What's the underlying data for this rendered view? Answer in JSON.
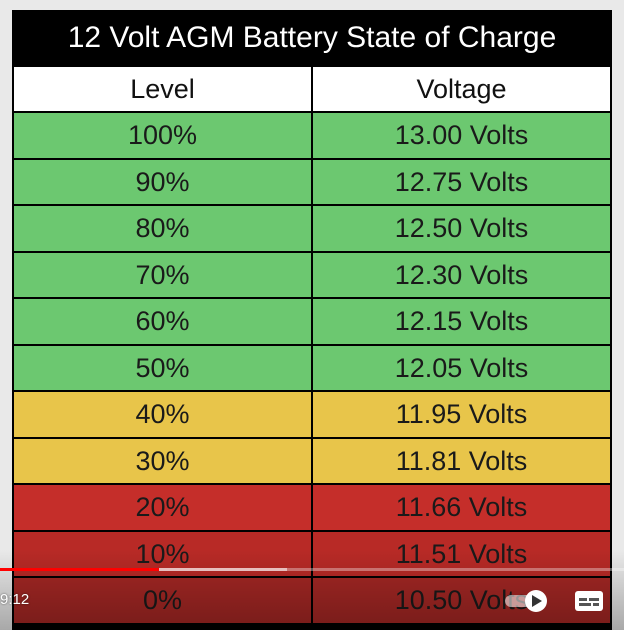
{
  "table": {
    "title": "12 Volt AGM Battery State of Charge",
    "headers": {
      "level": "Level",
      "voltage": "Voltage"
    },
    "rows": [
      {
        "level": "100%",
        "voltage": "13.00 Volts",
        "color": "#6cc870"
      },
      {
        "level": "90%",
        "voltage": "12.75 Volts",
        "color": "#6cc870"
      },
      {
        "level": "80%",
        "voltage": "12.50 Volts",
        "color": "#6cc870"
      },
      {
        "level": "70%",
        "voltage": "12.30 Volts",
        "color": "#6cc870"
      },
      {
        "level": "60%",
        "voltage": "12.15 Volts",
        "color": "#6cc870"
      },
      {
        "level": "50%",
        "voltage": "12.05 Volts",
        "color": "#6cc870"
      },
      {
        "level": "40%",
        "voltage": "11.95 Volts",
        "color": "#e8c54a"
      },
      {
        "level": "30%",
        "voltage": "11.81 Volts",
        "color": "#e8c54a"
      },
      {
        "level": "20%",
        "voltage": "11.66 Volts",
        "color": "#c52e2a"
      },
      {
        "level": "10%",
        "voltage": "11.51 Volts",
        "color": "#b82a26"
      },
      {
        "level": "0%",
        "voltage": "10.50 Volts",
        "color": "#a52724"
      }
    ]
  },
  "player": {
    "time_display": "9:12",
    "progress_percent": 25.5,
    "buffered_percent": 46,
    "progress_color": "#ff0000",
    "icons": {
      "autoplay": "autoplay-toggle-icon",
      "captions": "captions-icon"
    }
  }
}
